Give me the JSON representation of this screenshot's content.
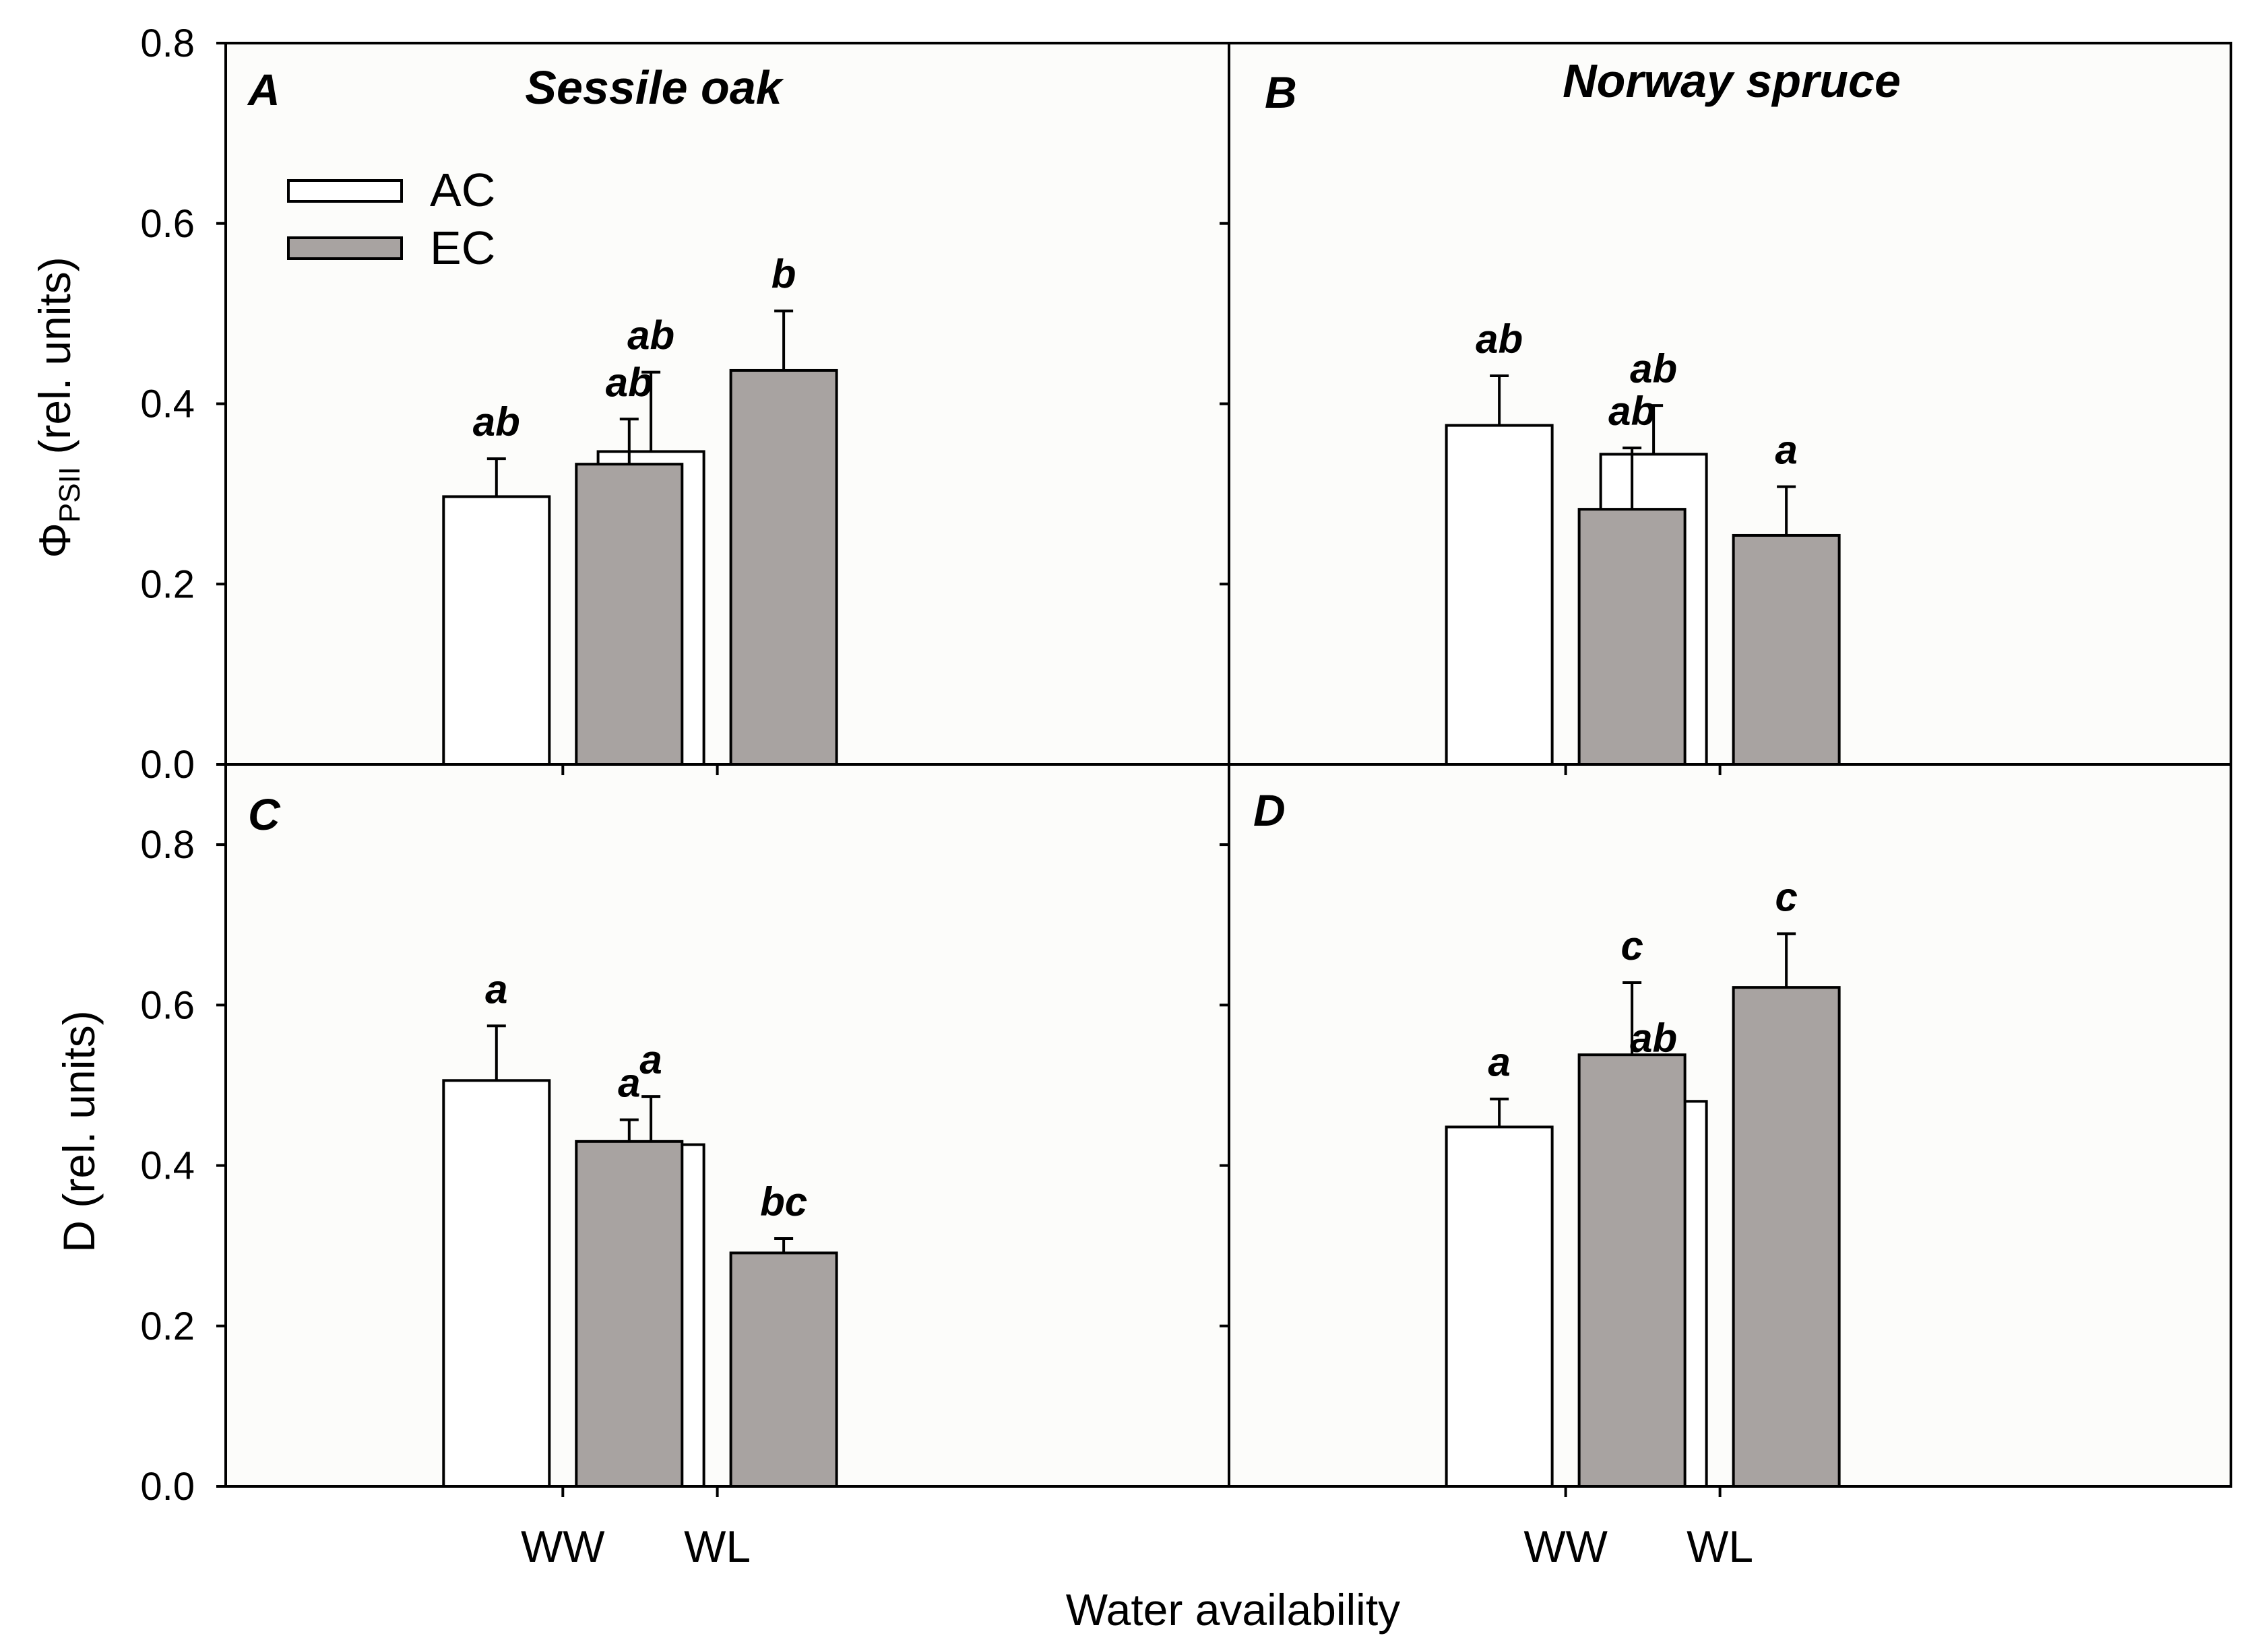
{
  "chart_data": [
    {
      "id": "A",
      "panel_letter": "A",
      "title": "Sessile oak",
      "type": "bar",
      "ylabel_main": "Φ",
      "ylabel_sub": "PSII",
      "ylabel_rest": " (rel. units)",
      "categories": [
        "WW",
        "WL"
      ],
      "ylim": [
        0,
        0.8
      ],
      "yticks": [
        "0.0",
        "0.2",
        "0.4",
        "0.6",
        "0.8"
      ],
      "series": [
        {
          "name": "AC",
          "color": "#ffffff",
          "values": [
            0.297,
            0.347
          ],
          "errors": [
            0.042,
            0.088
          ],
          "letters": [
            "ab",
            "ab"
          ]
        },
        {
          "name": "EC",
          "color": "#a8a3a1",
          "values": [
            0.333,
            0.437
          ],
          "errors": [
            0.05,
            0.066
          ],
          "letters": [
            "ab",
            "b"
          ]
        }
      ]
    },
    {
      "id": "B",
      "panel_letter": "B",
      "title": "Norway spruce",
      "type": "bar",
      "categories": [
        "WW",
        "WL"
      ],
      "ylim": [
        0,
        0.8
      ],
      "series": [
        {
          "name": "AC",
          "color": "#ffffff",
          "values": [
            0.376,
            0.344
          ],
          "errors": [
            0.055,
            0.054
          ],
          "letters": [
            "ab",
            "ab"
          ]
        },
        {
          "name": "EC",
          "color": "#a8a3a1",
          "values": [
            0.283,
            0.254
          ],
          "errors": [
            0.068,
            0.054
          ],
          "letters": [
            "ab",
            "a"
          ]
        }
      ]
    },
    {
      "id": "C",
      "panel_letter": "C",
      "type": "bar",
      "ylabel": "D (rel. units)",
      "categories": [
        "WW",
        "WL"
      ],
      "ylim": [
        0,
        0.9
      ],
      "yticks": [
        "0.0",
        "0.2",
        "0.4",
        "0.6",
        "0.8"
      ],
      "xlabels": [
        "WW",
        "WL"
      ],
      "series": [
        {
          "name": "AC",
          "color": "#ffffff",
          "values": [
            0.506,
            0.426
          ],
          "errors": [
            0.068,
            0.06
          ],
          "letters": [
            "a",
            "a"
          ]
        },
        {
          "name": "EC",
          "color": "#a8a3a1",
          "values": [
            0.43,
            0.291
          ],
          "errors": [
            0.027,
            0.018
          ],
          "letters": [
            "a",
            "bc"
          ]
        }
      ]
    },
    {
      "id": "D",
      "panel_letter": "D",
      "type": "bar",
      "categories": [
        "WW",
        "WL"
      ],
      "ylim": [
        0,
        0.9
      ],
      "xlabels": [
        "WW",
        "WL"
      ],
      "series": [
        {
          "name": "AC",
          "color": "#ffffff",
          "values": [
            0.448,
            0.48
          ],
          "errors": [
            0.035,
            0.033
          ],
          "letters": [
            "a",
            "ab"
          ]
        },
        {
          "name": "EC",
          "color": "#a8a3a1",
          "values": [
            0.538,
            0.622
          ],
          "errors": [
            0.09,
            0.067
          ],
          "letters": [
            "c",
            "c"
          ]
        }
      ]
    }
  ],
  "legend": [
    {
      "name": "AC",
      "color": "#ffffff"
    },
    {
      "name": "EC",
      "color": "#a8a3a1"
    }
  ],
  "legend_placement": "top-left of panel A",
  "xlabel": "Water availability"
}
